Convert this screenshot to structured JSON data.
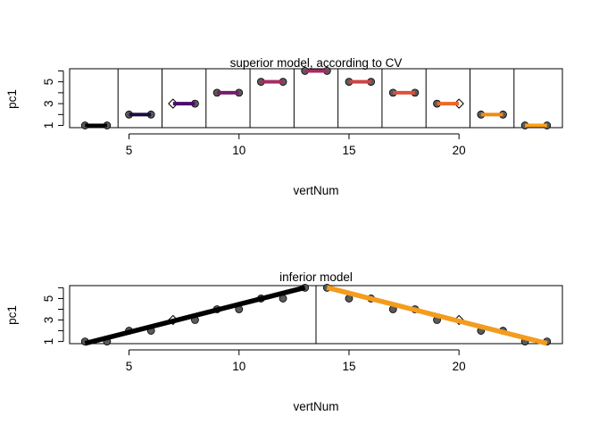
{
  "chart_data": [
    {
      "type": "scatter",
      "title": "superior model, according to CV",
      "xlabel": "vertNum",
      "ylabel": "pc1",
      "xlim": [
        2.3,
        24.7
      ],
      "ylim": [
        0.8,
        6.2
      ],
      "xticks": [
        5,
        10,
        15,
        20
      ],
      "yticks": [
        1,
        3,
        5
      ],
      "ytick_minor": [
        2,
        4,
        6
      ],
      "points": [
        {
          "x": 3,
          "y": 1,
          "shape": "circle"
        },
        {
          "x": 4,
          "y": 1,
          "shape": "circle"
        },
        {
          "x": 5,
          "y": 2,
          "shape": "circle"
        },
        {
          "x": 6,
          "y": 2,
          "shape": "circle"
        },
        {
          "x": 7,
          "y": 3,
          "shape": "diamond"
        },
        {
          "x": 8,
          "y": 3,
          "shape": "circle"
        },
        {
          "x": 9,
          "y": 4,
          "shape": "circle"
        },
        {
          "x": 10,
          "y": 4,
          "shape": "circle"
        },
        {
          "x": 11,
          "y": 5,
          "shape": "circle"
        },
        {
          "x": 12,
          "y": 5,
          "shape": "circle"
        },
        {
          "x": 13,
          "y": 6,
          "shape": "circle"
        },
        {
          "x": 14,
          "y": 6,
          "shape": "circle"
        },
        {
          "x": 15,
          "y": 5,
          "shape": "circle"
        },
        {
          "x": 16,
          "y": 5,
          "shape": "circle"
        },
        {
          "x": 17,
          "y": 4,
          "shape": "circle"
        },
        {
          "x": 18,
          "y": 4,
          "shape": "circle"
        },
        {
          "x": 19,
          "y": 3,
          "shape": "circle"
        },
        {
          "x": 20,
          "y": 3,
          "shape": "diamond"
        },
        {
          "x": 21,
          "y": 2,
          "shape": "circle"
        },
        {
          "x": 22,
          "y": 2,
          "shape": "circle"
        },
        {
          "x": 23,
          "y": 1,
          "shape": "circle"
        },
        {
          "x": 24,
          "y": 1,
          "shape": "circle"
        }
      ],
      "breakpoints": [
        4.5,
        6.5,
        8.5,
        10.5,
        12.5,
        14.5,
        16.5,
        18.5,
        20.5,
        22.5
      ],
      "segments": [
        {
          "x": [
            3,
            4
          ],
          "y": [
            1,
            1
          ],
          "color": "#000004"
        },
        {
          "x": [
            5,
            6
          ],
          "y": [
            2,
            2
          ],
          "color": "#1b0c41"
        },
        {
          "x": [
            7,
            8
          ],
          "y": [
            3,
            3
          ],
          "color": "#4a0c6b"
        },
        {
          "x": [
            9,
            10
          ],
          "y": [
            4,
            4
          ],
          "color": "#781c6d"
        },
        {
          "x": [
            11,
            12
          ],
          "y": [
            5,
            5
          ],
          "color": "#a52c60"
        },
        {
          "x": [
            13,
            14
          ],
          "y": [
            6,
            6
          ],
          "color": "#a52c60"
        },
        {
          "x": [
            15,
            16
          ],
          "y": [
            5,
            5
          ],
          "color": "#cf4446"
        },
        {
          "x": [
            17,
            18
          ],
          "y": [
            4,
            4
          ],
          "color": "#dd513a"
        },
        {
          "x": [
            19,
            20
          ],
          "y": [
            3,
            3
          ],
          "color": "#ed6925"
        },
        {
          "x": [
            21,
            22
          ],
          "y": [
            2,
            2
          ],
          "color": "#f38a13"
        },
        {
          "x": [
            23,
            24
          ],
          "y": [
            1,
            1
          ],
          "color": "#f9a214"
        }
      ]
    },
    {
      "type": "scatter",
      "title": "inferior model",
      "xlabel": "vertNum",
      "ylabel": "pc1",
      "xlim": [
        2.3,
        24.7
      ],
      "ylim": [
        0.8,
        6.2
      ],
      "xticks": [
        5,
        10,
        15,
        20
      ],
      "yticks": [
        1,
        3,
        5
      ],
      "ytick_minor": [
        2,
        4,
        6
      ],
      "points": [
        {
          "x": 3,
          "y": 1,
          "shape": "circle"
        },
        {
          "x": 4,
          "y": 1,
          "shape": "circle"
        },
        {
          "x": 5,
          "y": 2,
          "shape": "circle"
        },
        {
          "x": 6,
          "y": 2,
          "shape": "circle"
        },
        {
          "x": 7,
          "y": 3,
          "shape": "diamond"
        },
        {
          "x": 8,
          "y": 3,
          "shape": "circle"
        },
        {
          "x": 9,
          "y": 4,
          "shape": "circle"
        },
        {
          "x": 10,
          "y": 4,
          "shape": "circle"
        },
        {
          "x": 11,
          "y": 5,
          "shape": "circle"
        },
        {
          "x": 12,
          "y": 5,
          "shape": "circle"
        },
        {
          "x": 13,
          "y": 6,
          "shape": "circle"
        },
        {
          "x": 14,
          "y": 6,
          "shape": "circle"
        },
        {
          "x": 15,
          "y": 5,
          "shape": "circle"
        },
        {
          "x": 16,
          "y": 5,
          "shape": "circle"
        },
        {
          "x": 17,
          "y": 4,
          "shape": "circle"
        },
        {
          "x": 18,
          "y": 4,
          "shape": "circle"
        },
        {
          "x": 19,
          "y": 3,
          "shape": "circle"
        },
        {
          "x": 20,
          "y": 3,
          "shape": "diamond"
        },
        {
          "x": 21,
          "y": 2,
          "shape": "circle"
        },
        {
          "x": 22,
          "y": 2,
          "shape": "circle"
        },
        {
          "x": 23,
          "y": 1,
          "shape": "circle"
        },
        {
          "x": 24,
          "y": 1,
          "shape": "circle"
        }
      ],
      "breakpoints": [
        13.5
      ],
      "segments": [
        {
          "x": [
            3,
            13
          ],
          "y": [
            0.82,
            6.02
          ],
          "color": "#000000"
        },
        {
          "x": [
            14,
            24
          ],
          "y": [
            6.02,
            0.82
          ],
          "color": "#f39c1e"
        }
      ]
    }
  ]
}
